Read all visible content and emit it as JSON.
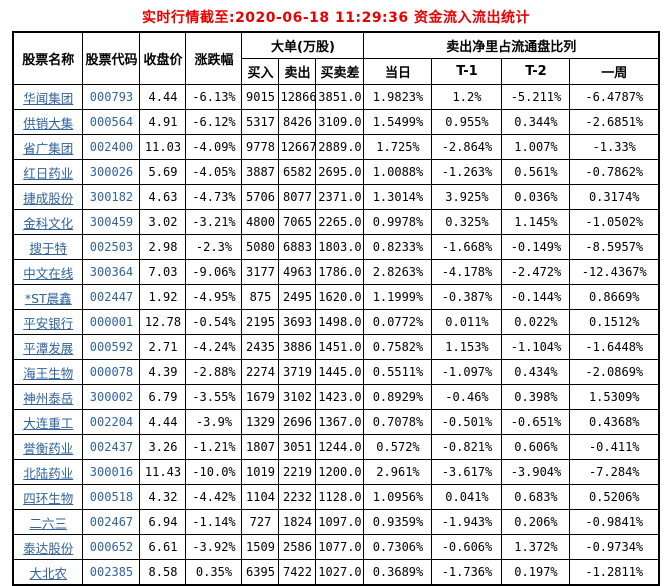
{
  "styles": {
    "title_color": "#e60000",
    "link_color": "#31639c",
    "border_color": "#000000",
    "background": "#ffffff"
  },
  "chart_data": {
    "type": "table",
    "title": "实时行情截至:2020-06-18 11:29:36 资金流入流出统计",
    "column_groups": [
      {
        "label": "大单(万股)",
        "span": 3
      },
      {
        "label": "卖出净里占流通盘比列",
        "span": 4
      }
    ],
    "columns": [
      "股票名称",
      "股票代码",
      "收盘价",
      "涨跌幅",
      "买入",
      "卖出",
      "买卖差",
      "当日",
      "T-1",
      "T-2",
      "一周"
    ],
    "rows": [
      [
        "华闻集团",
        "000793",
        "4.44",
        "-6.13%",
        "9015",
        "12866",
        "3851.0",
        "1.9823%",
        "1.2%",
        "-5.211%",
        "-6.4787%"
      ],
      [
        "供销大集",
        "000564",
        "4.91",
        "-6.12%",
        "5317",
        "8426",
        "3109.0",
        "1.5499%",
        "0.955%",
        "0.344%",
        "-2.6851%"
      ],
      [
        "省广集团",
        "002400",
        "11.03",
        "-4.09%",
        "9778",
        "12667",
        "2889.0",
        "1.725%",
        "-2.864%",
        "1.007%",
        "-1.33%"
      ],
      [
        "红日药业",
        "300026",
        "5.69",
        "-4.05%",
        "3887",
        "6582",
        "2695.0",
        "1.0088%",
        "-1.263%",
        "0.561%",
        "-0.7862%"
      ],
      [
        "捷成股份",
        "300182",
        "4.63",
        "-4.73%",
        "5706",
        "8077",
        "2371.0",
        "1.3014%",
        "3.925%",
        "0.036%",
        "0.3174%"
      ],
      [
        "金科文化",
        "300459",
        "3.02",
        "-3.21%",
        "4800",
        "7065",
        "2265.0",
        "0.9978%",
        "0.325%",
        "1.145%",
        "-1.0502%"
      ],
      [
        "搜于特",
        "002503",
        "2.98",
        "-2.3%",
        "5080",
        "6883",
        "1803.0",
        "0.8233%",
        "-1.668%",
        "-0.149%",
        "-8.5957%"
      ],
      [
        "中文在线",
        "300364",
        "7.03",
        "-9.06%",
        "3177",
        "4963",
        "1786.0",
        "2.8263%",
        "-4.178%",
        "-2.472%",
        "-12.4367%"
      ],
      [
        "*ST晨鑫",
        "002447",
        "1.92",
        "-4.95%",
        "875",
        "2495",
        "1620.0",
        "1.1999%",
        "-0.387%",
        "-0.144%",
        "0.8669%"
      ],
      [
        "平安银行",
        "000001",
        "12.78",
        "-0.54%",
        "2195",
        "3693",
        "1498.0",
        "0.0772%",
        "0.011%",
        "0.022%",
        "0.1512%"
      ],
      [
        "平潭发展",
        "000592",
        "2.71",
        "-4.24%",
        "2435",
        "3886",
        "1451.0",
        "0.7582%",
        "1.153%",
        "-1.104%",
        "-1.6448%"
      ],
      [
        "海王生物",
        "000078",
        "4.39",
        "-2.88%",
        "2274",
        "3719",
        "1445.0",
        "0.5511%",
        "-1.097%",
        "0.434%",
        "-2.0869%"
      ],
      [
        "神州泰岳",
        "300002",
        "6.79",
        "-3.55%",
        "1679",
        "3102",
        "1423.0",
        "0.8929%",
        "-0.46%",
        "0.398%",
        "1.5309%"
      ],
      [
        "大连重工",
        "002204",
        "4.44",
        "-3.9%",
        "1329",
        "2696",
        "1367.0",
        "0.7078%",
        "-0.501%",
        "-0.651%",
        "0.4368%"
      ],
      [
        "誉衡药业",
        "002437",
        "3.26",
        "-1.21%",
        "1807",
        "3051",
        "1244.0",
        "0.572%",
        "-0.821%",
        "0.606%",
        "-0.411%"
      ],
      [
        "北陆药业",
        "300016",
        "11.43",
        "-10.0%",
        "1019",
        "2219",
        "1200.0",
        "2.961%",
        "-3.617%",
        "-3.904%",
        "-7.284%"
      ],
      [
        "四环生物",
        "000518",
        "4.32",
        "-4.42%",
        "1104",
        "2232",
        "1128.0",
        "1.0956%",
        "0.041%",
        "0.683%",
        "0.5206%"
      ],
      [
        "二六三",
        "002467",
        "6.94",
        "-1.14%",
        "727",
        "1824",
        "1097.0",
        "0.9359%",
        "-1.943%",
        "0.206%",
        "-0.9841%"
      ],
      [
        "泰达股份",
        "000652",
        "6.61",
        "-3.92%",
        "1509",
        "2586",
        "1077.0",
        "0.7306%",
        "-0.606%",
        "1.372%",
        "-0.9734%"
      ],
      [
        "大北农",
        "002385",
        "8.58",
        "0.35%",
        "6395",
        "7422",
        "1027.0",
        "0.3689%",
        "-1.736%",
        "0.197%",
        "-1.2811%"
      ]
    ]
  }
}
